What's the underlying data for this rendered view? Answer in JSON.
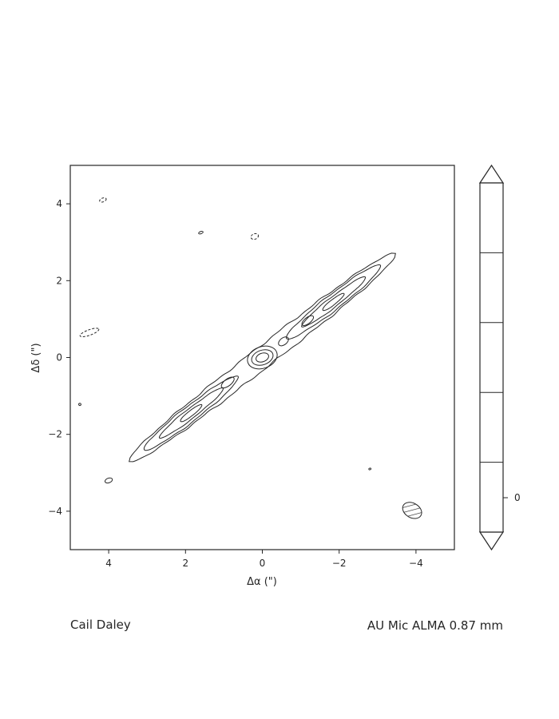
{
  "chart_data": {
    "type": "contour",
    "xlabel": "Δα (\")",
    "ylabel": "Δδ (\")",
    "xlim": [
      5,
      -5
    ],
    "ylim": [
      -5,
      5
    ],
    "x_ticks": [
      4,
      2,
      0,
      -2,
      -4
    ],
    "y_ticks": [
      4,
      2,
      0,
      -2,
      -4
    ],
    "x_tick_labels": [
      "4",
      "2",
      "0",
      "−2",
      "−4"
    ],
    "y_tick_labels": [
      "4",
      "2",
      "0",
      "−2",
      "−4"
    ],
    "grid": false,
    "disk": {
      "center": [
        0,
        0
      ],
      "position_angle_deg": 128,
      "outer_extent_arcsec": 4.6
    },
    "contours": [
      {
        "level": 1,
        "type": "envelope",
        "half_length": 4.4,
        "half_width": 0.27
      },
      {
        "level": 2,
        "type": "lobes",
        "lobe_centers_arcsec": [
          2.35,
          -2.35
        ],
        "half_length": 1.55,
        "half_width": 0.2
      },
      {
        "level": 3,
        "type": "lobes",
        "lobe_centers_arcsec": [
          2.35,
          -2.35
        ],
        "half_length": 1.05,
        "half_width": 0.13
      },
      {
        "level": 4,
        "type": "knots",
        "knot_centers_arcsec": [
          2.35,
          -2.35
        ],
        "half_length": 0.35,
        "half_width": 0.07
      }
    ],
    "inner_blobs": [
      {
        "center": [
          0.9,
          -0.65
        ],
        "rx": 0.2,
        "ry": 0.09
      },
      {
        "center": [
          -0.55,
          0.42
        ],
        "rx": 0.15,
        "ry": 0.09
      },
      {
        "center": [
          -1.18,
          0.96
        ],
        "rx": 0.18,
        "ry": 0.08
      }
    ],
    "central_peak": [
      {
        "center": [
          0,
          0
        ],
        "rx": 0.4,
        "ry": 0.28
      },
      {
        "center": [
          0,
          0
        ],
        "rx": 0.29,
        "ry": 0.19
      },
      {
        "center": [
          0,
          0
        ],
        "rx": 0.17,
        "ry": 0.11
      }
    ],
    "small_features": [
      {
        "center": [
          4.15,
          4.1
        ],
        "rx": 0.09,
        "ry": 0.05,
        "dashed": true
      },
      {
        "center": [
          1.6,
          3.25
        ],
        "rx": 0.06,
        "ry": 0.03,
        "dashed": false
      },
      {
        "center": [
          0.2,
          3.15
        ],
        "rx": 0.1,
        "ry": 0.07,
        "dashed": true
      },
      {
        "center": [
          4.75,
          -1.22
        ],
        "rx": 0.03,
        "ry": 0.03,
        "dashed": false
      },
      {
        "center": [
          4.0,
          -3.2
        ],
        "rx": 0.1,
        "ry": 0.06,
        "dashed": false
      },
      {
        "center": [
          -2.8,
          -2.9
        ],
        "rx": 0.03,
        "ry": 0.02,
        "dashed": false
      },
      {
        "center": [
          4.5,
          0.65
        ],
        "rx": 0.26,
        "ry": 0.07,
        "dashed": true
      }
    ],
    "beam": {
      "center": [
        -3.9,
        -3.98
      ],
      "major_arcsec": 0.53,
      "minor_arcsec": 0.38,
      "angle_deg": 30,
      "hatched": true
    },
    "colorbar": {
      "extend": "both",
      "segments": 5,
      "tick_labels": [
        "0"
      ]
    }
  },
  "captions": {
    "left": "Cail Daley",
    "right": "AU Mic ALMA 0.87 mm"
  }
}
